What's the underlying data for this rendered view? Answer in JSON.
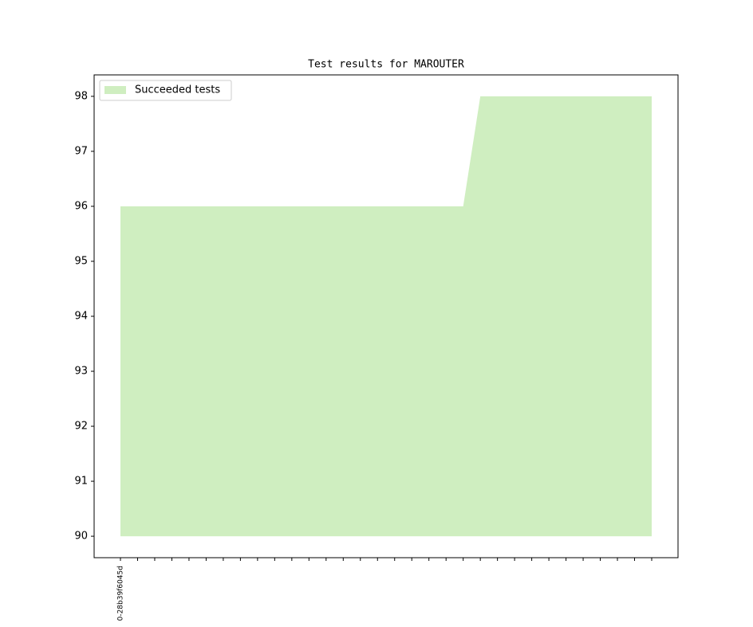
{
  "chart_data": {
    "type": "area",
    "title": "Test results for MAROUTER",
    "categories": [
      "0-28b39f6045d",
      null,
      null,
      null,
      null,
      null,
      null,
      null,
      null,
      null,
      null,
      null,
      null,
      null,
      null,
      null,
      null,
      null,
      null,
      null,
      null,
      null,
      null,
      null,
      null,
      null,
      null,
      null,
      null,
      null,
      null,
      null
    ],
    "series": [
      {
        "name": "Succeeded tests",
        "color": "#cfeec0",
        "values": [
          96,
          96,
          96,
          96,
          96,
          96,
          96,
          96,
          96,
          96,
          96,
          96,
          96,
          96,
          96,
          96,
          96,
          96,
          96,
          96,
          96,
          98,
          98,
          98,
          98,
          98,
          98,
          98,
          98,
          98,
          98,
          98
        ]
      }
    ],
    "baseline": 90,
    "ylim": [
      89.61,
      98.39
    ],
    "yticks": [
      90,
      91,
      92,
      93,
      94,
      95,
      96,
      97,
      98
    ],
    "legend": "upper left"
  }
}
